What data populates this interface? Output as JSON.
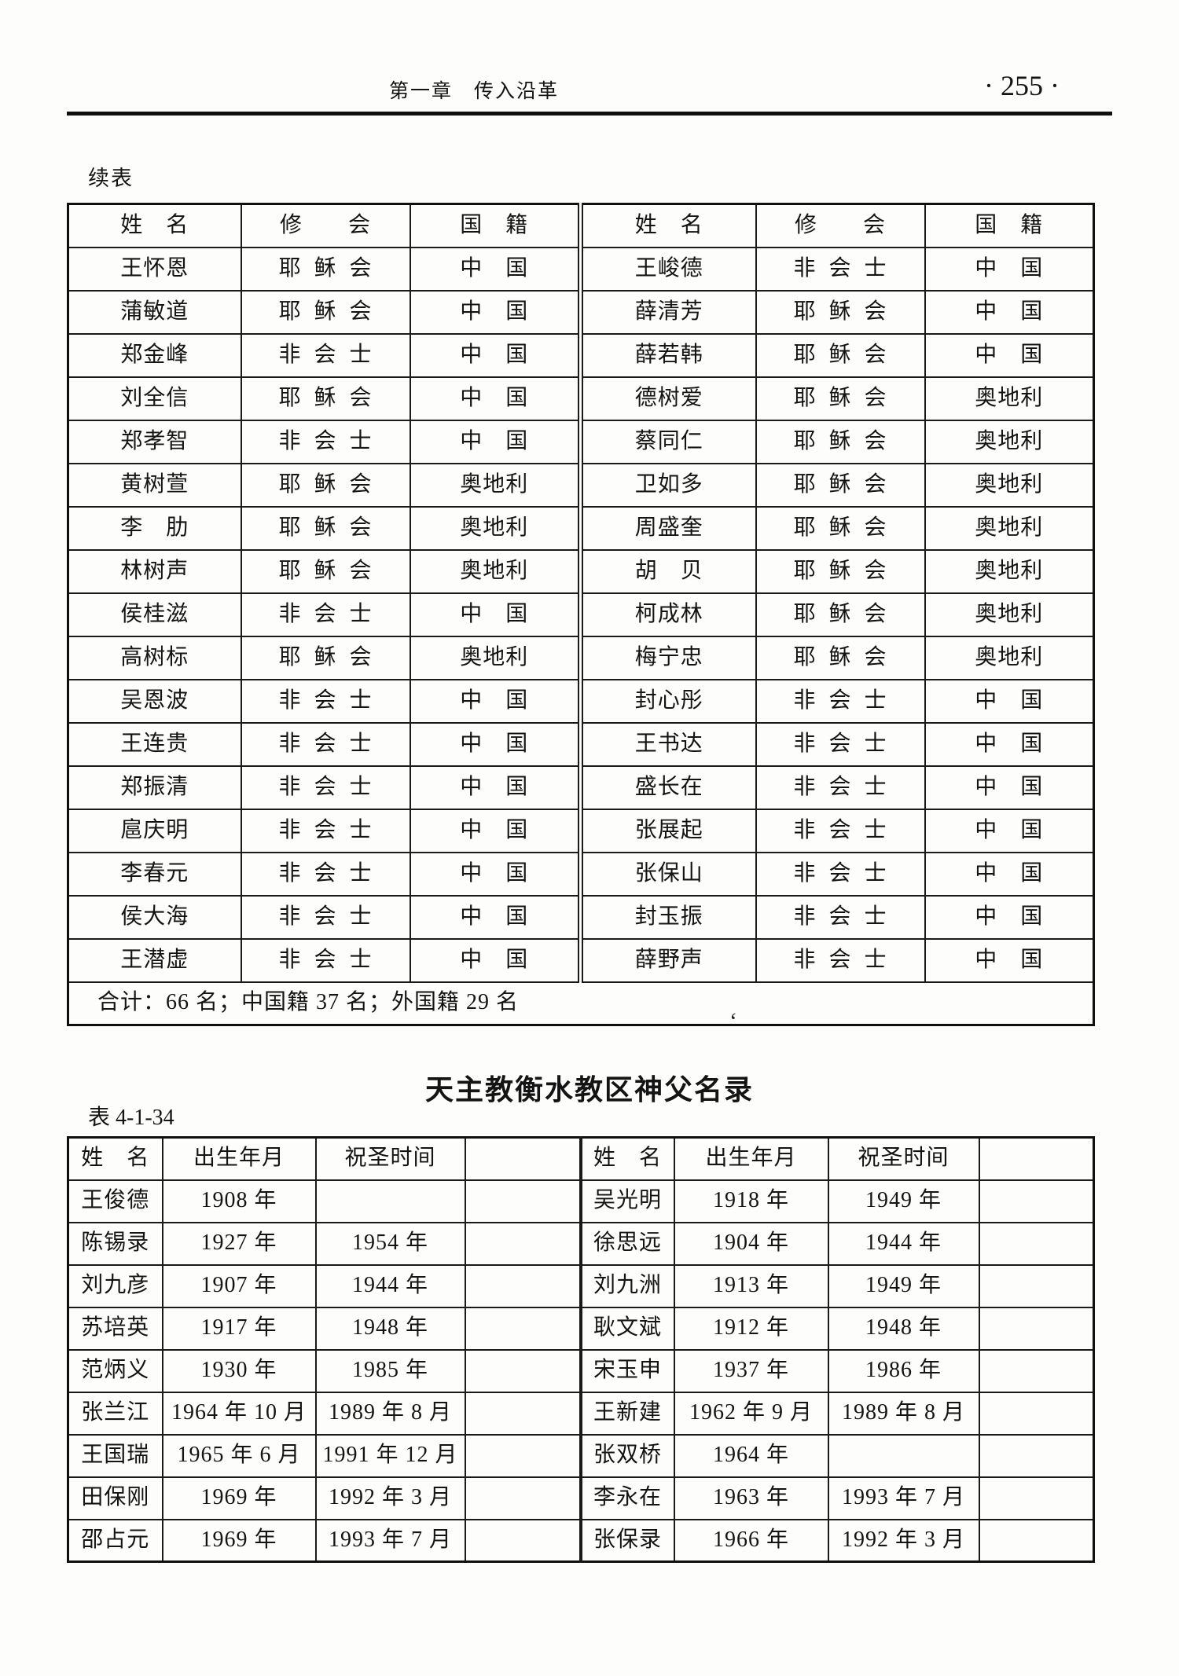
{
  "page": {
    "chapter_header": "第一章　传入沿革",
    "page_number": "· 255 ·",
    "scan_mark": "‘"
  },
  "table1": {
    "continued_label": "续表",
    "col_headers": [
      "姓　名",
      "修　　会",
      "国　籍"
    ],
    "left_rows": [
      {
        "name": "王怀恩",
        "order": "耶  稣  会",
        "nationality": "中　国"
      },
      {
        "name": "蒲敏道",
        "order": "耶  稣  会",
        "nationality": "中　国"
      },
      {
        "name": "郑金峰",
        "order": "非  会  士",
        "nationality": "中　国"
      },
      {
        "name": "刘全信",
        "order": "耶  稣  会",
        "nationality": "中　国"
      },
      {
        "name": "郑孝智",
        "order": "非  会  士",
        "nationality": "中　国"
      },
      {
        "name": "黄树萱",
        "order": "耶  稣  会",
        "nationality": "奥地利"
      },
      {
        "name": "李　肋",
        "order": "耶  稣  会",
        "nationality": "奥地利"
      },
      {
        "name": "林树声",
        "order": "耶  稣  会",
        "nationality": "奥地利"
      },
      {
        "name": "侯桂滋",
        "order": "非  会  士",
        "nationality": "中　国"
      },
      {
        "name": "高树标",
        "order": "耶  稣  会",
        "nationality": "奥地利"
      },
      {
        "name": "吴恩波",
        "order": "非  会  士",
        "nationality": "中　国"
      },
      {
        "name": "王连贵",
        "order": "非  会  士",
        "nationality": "中　国"
      },
      {
        "name": "郑振清",
        "order": "非  会  士",
        "nationality": "中　国"
      },
      {
        "name": "扈庆明",
        "order": "非  会  士",
        "nationality": "中　国"
      },
      {
        "name": "李春元",
        "order": "非  会  士",
        "nationality": "中　国"
      },
      {
        "name": "侯大海",
        "order": "非  会  士",
        "nationality": "中　国"
      },
      {
        "name": "王潜虚",
        "order": "非  会  士",
        "nationality": "中　国"
      }
    ],
    "right_rows": [
      {
        "name": "王峻德",
        "order": "非  会  士",
        "nationality": "中　国"
      },
      {
        "name": "薛清芳",
        "order": "耶  稣  会",
        "nationality": "中　国"
      },
      {
        "name": "薛若韩",
        "order": "耶  稣  会",
        "nationality": "中　国"
      },
      {
        "name": "德树爱",
        "order": "耶  稣  会",
        "nationality": "奥地利"
      },
      {
        "name": "蔡同仁",
        "order": "耶  稣  会",
        "nationality": "奥地利"
      },
      {
        "name": "卫如多",
        "order": "耶  稣  会",
        "nationality": "奥地利"
      },
      {
        "name": "周盛奎",
        "order": "耶  稣  会",
        "nationality": "奥地利"
      },
      {
        "name": "胡　贝",
        "order": "耶  稣  会",
        "nationality": "奥地利"
      },
      {
        "name": "柯成林",
        "order": "耶  稣  会",
        "nationality": "奥地利"
      },
      {
        "name": "梅宁忠",
        "order": "耶  稣  会",
        "nationality": "奥地利"
      },
      {
        "name": "封心彤",
        "order": "非  会  士",
        "nationality": "中　国"
      },
      {
        "name": "王书达",
        "order": "非  会  士",
        "nationality": "中　国"
      },
      {
        "name": "盛长在",
        "order": "非  会  士",
        "nationality": "中　国"
      },
      {
        "name": "张展起",
        "order": "非  会  士",
        "nationality": "中　国"
      },
      {
        "name": "张保山",
        "order": "非  会  士",
        "nationality": "中　国"
      },
      {
        "name": "封玉振",
        "order": "非  会  士",
        "nationality": "中　国"
      },
      {
        "name": "薛野声",
        "order": "非  会  士",
        "nationality": "中　国"
      }
    ],
    "summary": "合计：66 名；中国籍 37 名；外国籍 29 名"
  },
  "table2": {
    "title": "天主教衡水教区神父名录",
    "table_label": "表 4-1-34",
    "col_headers": [
      "姓　名",
      "出生年月",
      "祝圣时间"
    ],
    "left_rows": [
      {
        "name": "王俊德",
        "birth": "1908 年",
        "ordained": ""
      },
      {
        "name": "陈锡录",
        "birth": "1927 年",
        "ordained": "1954 年"
      },
      {
        "name": "刘九彦",
        "birth": "1907 年",
        "ordained": "1944 年"
      },
      {
        "name": "苏培英",
        "birth": "1917 年",
        "ordained": "1948 年"
      },
      {
        "name": "范炳义",
        "birth": "1930 年",
        "ordained": "1985 年"
      },
      {
        "name": "张兰江",
        "birth": "1964 年 10 月",
        "ordained": "1989 年 8 月"
      },
      {
        "name": "王国瑞",
        "birth": "1965 年 6 月",
        "ordained": "1991 年 12 月"
      },
      {
        "name": "田保刚",
        "birth": "1969 年",
        "ordained": "1992 年 3 月"
      },
      {
        "name": "邵占元",
        "birth": "1969 年",
        "ordained": "1993 年 7 月"
      }
    ],
    "right_rows": [
      {
        "name": "吴光明",
        "birth": "1918 年",
        "ordained": "1949 年"
      },
      {
        "name": "徐思远",
        "birth": "1904 年",
        "ordained": "1944 年"
      },
      {
        "name": "刘九洲",
        "birth": "1913 年",
        "ordained": "1949 年"
      },
      {
        "name": "耿文斌",
        "birth": "1912 年",
        "ordained": "1948 年"
      },
      {
        "name": "宋玉申",
        "birth": "1937 年",
        "ordained": "1986 年"
      },
      {
        "name": "王新建",
        "birth": "1962 年 9 月",
        "ordained": "1989 年 8 月"
      },
      {
        "name": "张双桥",
        "birth": "1964 年",
        "ordained": ""
      },
      {
        "name": "李永在",
        "birth": "1963 年",
        "ordained": "1993 年 7 月"
      },
      {
        "name": "张保录",
        "birth": "1966 年",
        "ordained": "1992 年 3 月"
      }
    ]
  }
}
